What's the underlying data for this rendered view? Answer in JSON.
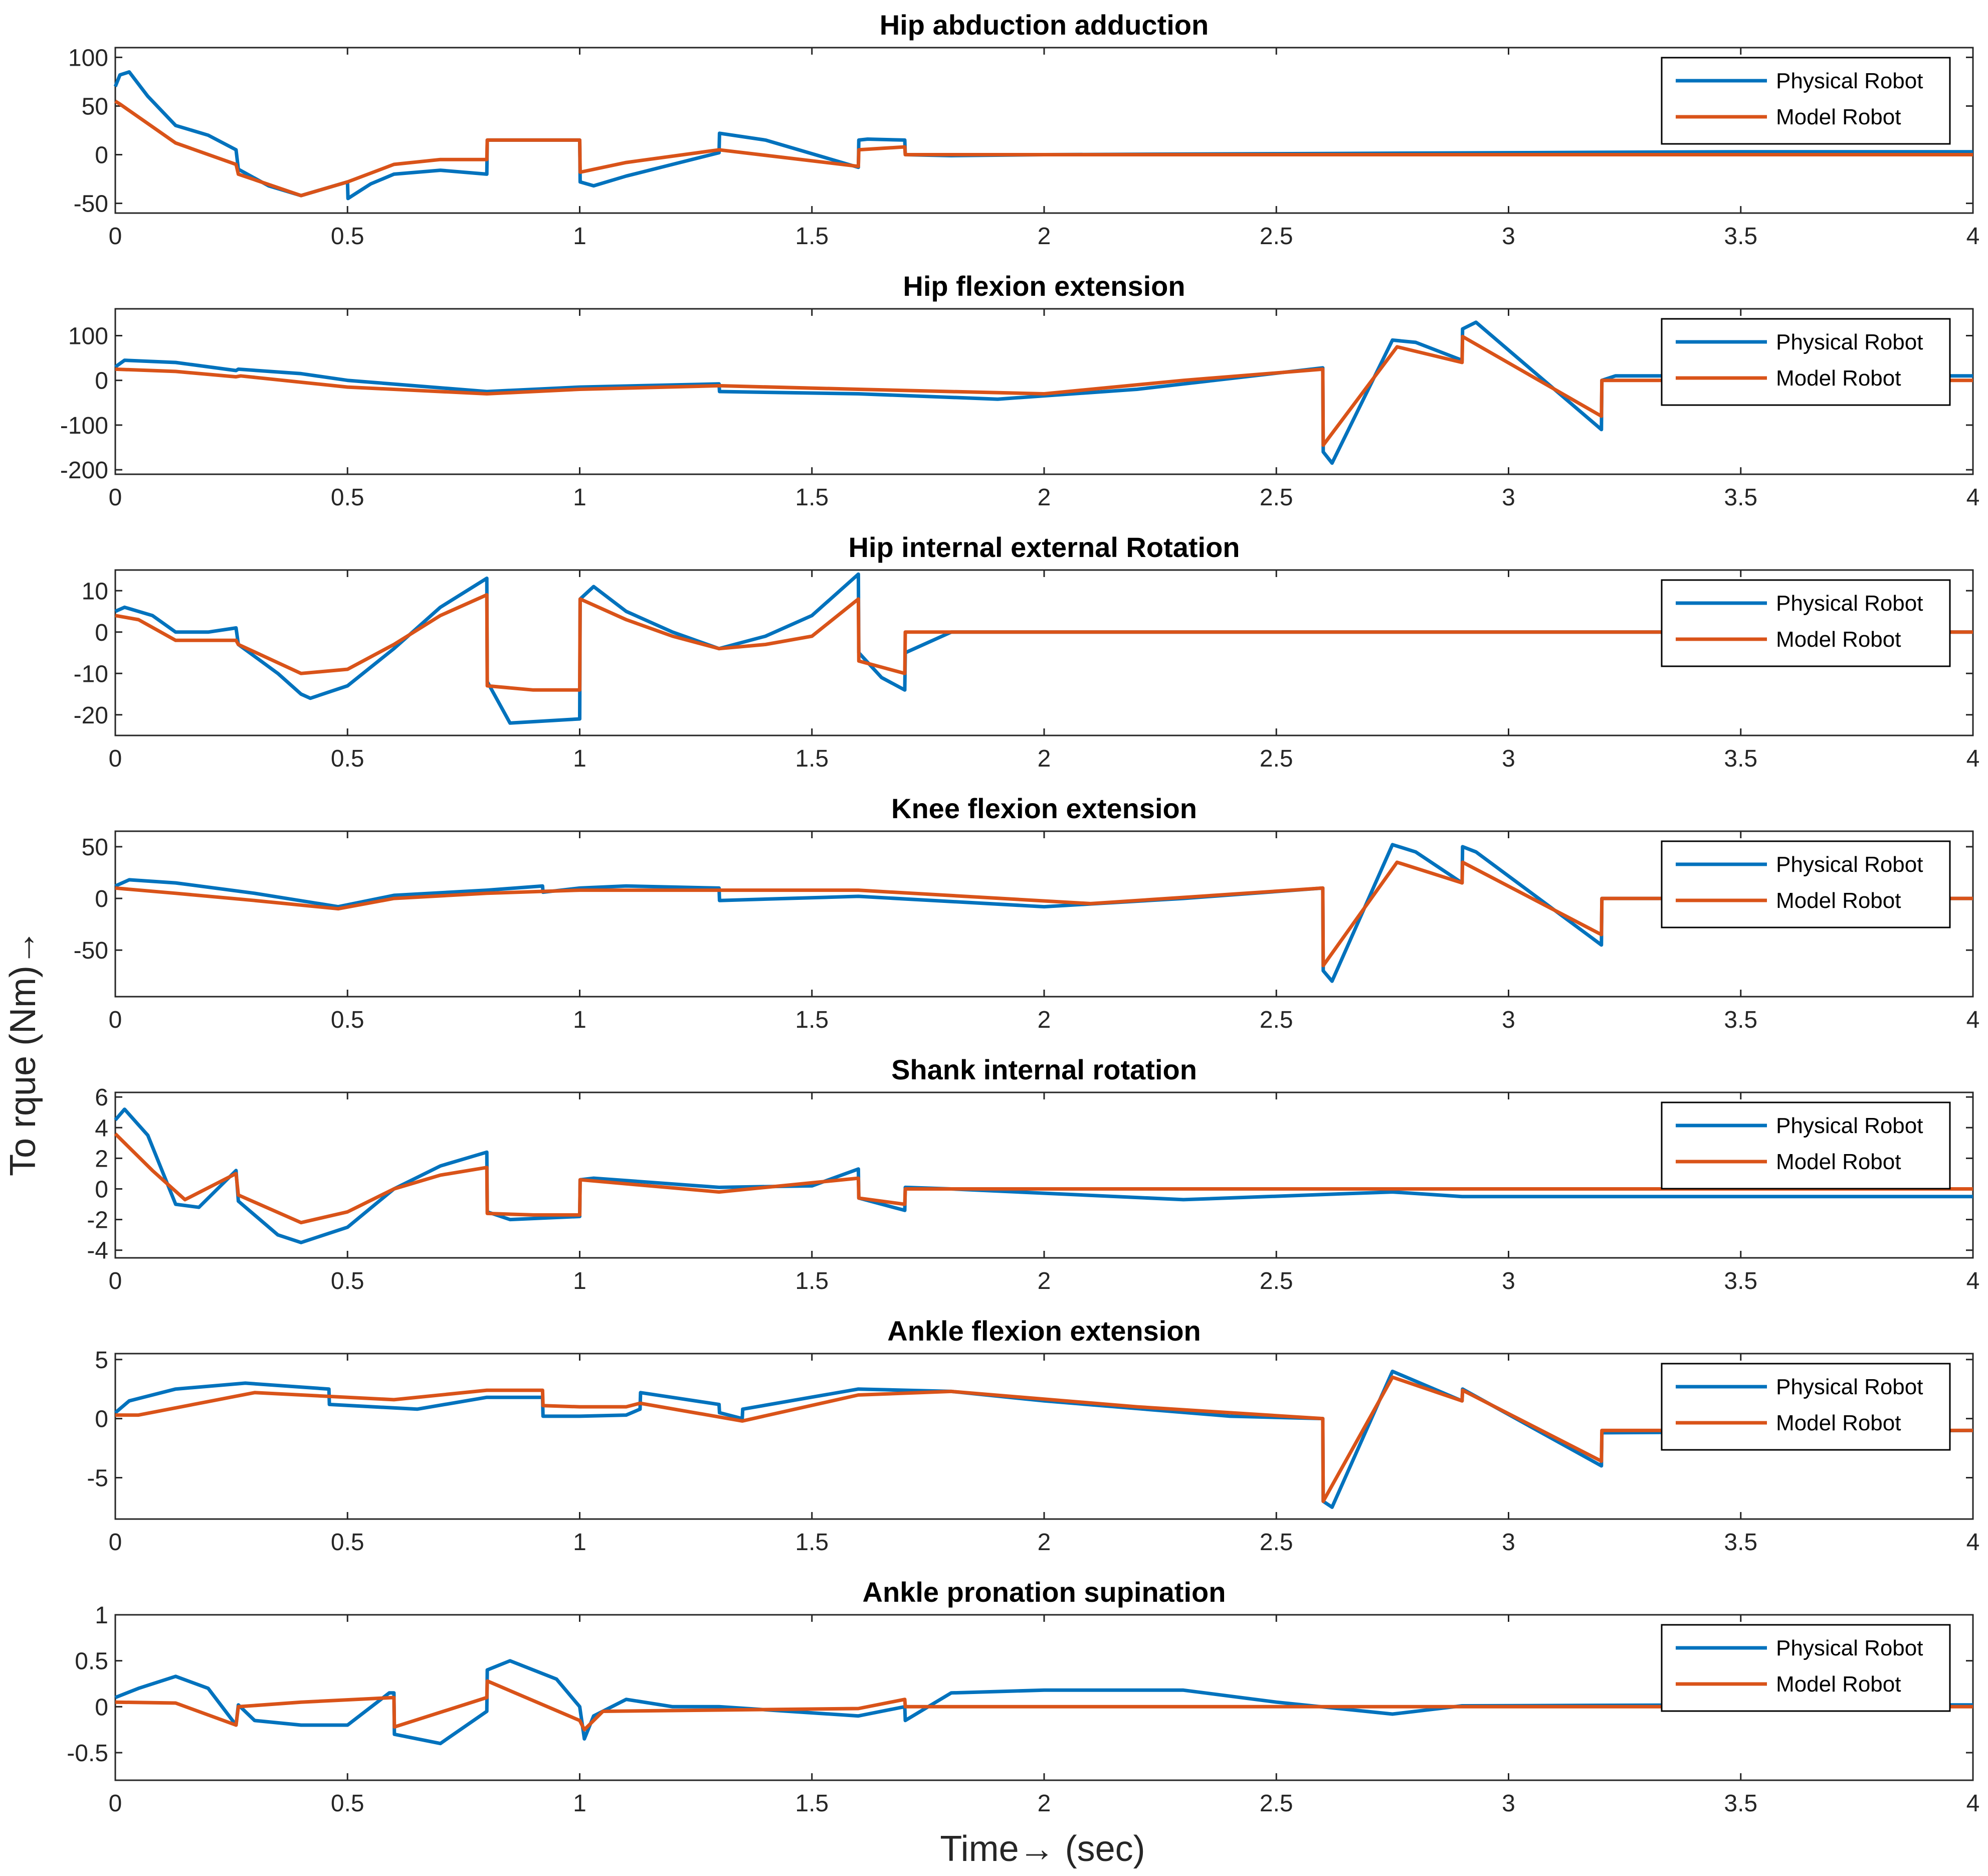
{
  "figure": {
    "ylabel": "To rque (Nm)→",
    "xlabel": "Time→ (sec)"
  },
  "colors": {
    "physical": "#0072BD",
    "model": "#D95319",
    "axis": "#262626"
  },
  "legend": {
    "entries": [
      "Physical Robot",
      "Model Robot"
    ],
    "placement": "top-right"
  },
  "chart_data": [
    {
      "type": "line",
      "title": "Hip abduction adduction",
      "xlim": [
        0,
        4
      ],
      "ylim": [
        -60,
        110
      ],
      "xticks": [
        0,
        0.5,
        1,
        1.5,
        2,
        2.5,
        3,
        3.5,
        4
      ],
      "xtick_labels": [
        "0",
        "0.5",
        "1",
        "1.5",
        "2",
        "2.5",
        "3",
        "3.5",
        "4"
      ],
      "yticks": [
        -50,
        0,
        50,
        100
      ],
      "ytick_labels": [
        "-50",
        "0",
        "50",
        "100"
      ],
      "series": [
        {
          "name": "Physical Robot",
          "x": [
            0,
            0.01,
            0.03,
            0.07,
            0.13,
            0.2,
            0.26,
            0.265,
            0.33,
            0.4,
            0.45,
            0.5,
            0.501,
            0.55,
            0.6,
            0.7,
            0.8,
            0.801,
            1.0,
            1.001,
            1.03,
            1.1,
            1.2,
            1.3,
            1.301,
            1.4,
            1.6,
            1.601,
            1.62,
            1.7,
            1.701,
            1.8,
            2,
            2.5,
            3,
            3.5,
            4
          ],
          "y": [
            70,
            82,
            85,
            60,
            30,
            20,
            5,
            -15,
            -32,
            -42,
            -35,
            -28,
            -45,
            -30,
            -20,
            -16,
            -20,
            15,
            15,
            -28,
            -32,
            -22,
            -10,
            2,
            22,
            15,
            -13,
            15,
            16,
            15,
            0,
            -1,
            0,
            1,
            2,
            3,
            3
          ]
        },
        {
          "name": "Model Robot",
          "x": [
            0,
            0.01,
            0.13,
            0.26,
            0.265,
            0.4,
            0.5,
            0.6,
            0.7,
            0.8,
            0.801,
            1.0,
            1.001,
            1.1,
            1.3,
            1.6,
            1.601,
            1.7,
            1.701,
            4
          ],
          "y": [
            55,
            52,
            12,
            -10,
            -20,
            -42,
            -28,
            -10,
            -5,
            -5,
            15,
            15,
            -18,
            -8,
            5,
            -12,
            5,
            8,
            0,
            0
          ]
        }
      ]
    },
    {
      "type": "line",
      "title": "Hip flexion extension",
      "xlim": [
        0,
        4
      ],
      "ylim": [
        -210,
        160
      ],
      "xticks": [
        0,
        0.5,
        1,
        1.5,
        2,
        2.5,
        3,
        3.5,
        4
      ],
      "xtick_labels": [
        "0",
        "0.5",
        "1",
        "1.5",
        "2",
        "2.5",
        "3",
        "3.5",
        "4"
      ],
      "yticks": [
        -200,
        -100,
        0,
        100
      ],
      "ytick_labels": [
        "-200",
        "-100",
        "0",
        "100"
      ],
      "series": [
        {
          "name": "Physical Robot",
          "x": [
            0,
            0.02,
            0.13,
            0.26,
            0.265,
            0.4,
            0.5,
            0.8,
            1.0,
            1.3,
            1.301,
            1.6,
            1.9,
            2.2,
            2.6,
            2.601,
            2.62,
            2.75,
            2.8,
            2.9,
            2.901,
            2.93,
            3.2,
            3.201,
            3.23,
            4
          ],
          "y": [
            30,
            45,
            40,
            22,
            25,
            15,
            0,
            -25,
            -15,
            -8,
            -25,
            -30,
            -42,
            -20,
            28,
            -160,
            -185,
            90,
            85,
            45,
            115,
            130,
            -110,
            0,
            10,
            10
          ]
        },
        {
          "name": "Model Robot",
          "x": [
            0,
            0.13,
            0.26,
            0.27,
            0.5,
            0.8,
            1.0,
            1.3,
            1.6,
            2.0,
            2.3,
            2.6,
            2.601,
            2.76,
            2.9,
            2.901,
            3.2,
            3.201,
            4
          ],
          "y": [
            25,
            20,
            8,
            10,
            -15,
            -30,
            -20,
            -12,
            -20,
            -30,
            0,
            25,
            -145,
            75,
            40,
            98,
            -80,
            0,
            0
          ]
        }
      ]
    },
    {
      "type": "line",
      "title": "Hip internal external Rotation",
      "xlim": [
        0,
        4
      ],
      "ylim": [
        -25,
        15
      ],
      "xticks": [
        0,
        0.5,
        1,
        1.5,
        2,
        2.5,
        3,
        3.5,
        4
      ],
      "xtick_labels": [
        "0",
        "0.5",
        "1",
        "1.5",
        "2",
        "2.5",
        "3",
        "3.5",
        "4"
      ],
      "yticks": [
        -20,
        -10,
        0,
        10
      ],
      "ytick_labels": [
        "-20",
        "-10",
        "0",
        "10"
      ],
      "series": [
        {
          "name": "Physical Robot",
          "x": [
            0,
            0.02,
            0.08,
            0.13,
            0.2,
            0.26,
            0.265,
            0.35,
            0.4,
            0.42,
            0.5,
            0.6,
            0.7,
            0.8,
            0.801,
            0.85,
            1.0,
            1.001,
            1.03,
            1.1,
            1.2,
            1.3,
            1.4,
            1.5,
            1.6,
            1.601,
            1.65,
            1.7,
            1.701,
            1.8,
            2,
            2.5,
            4
          ],
          "y": [
            5,
            6,
            4,
            0,
            0,
            1,
            -3,
            -10,
            -15,
            -16,
            -13,
            -4,
            6,
            13,
            -12,
            -22,
            -21,
            8,
            11,
            5,
            0,
            -4,
            -1,
            4,
            14,
            -5,
            -11,
            -14,
            -5,
            0,
            0,
            0,
            0
          ]
        },
        {
          "name": "Model Robot",
          "x": [
            0,
            0.05,
            0.13,
            0.26,
            0.265,
            0.4,
            0.5,
            0.6,
            0.7,
            0.8,
            0.801,
            0.9,
            1.0,
            1.001,
            1.1,
            1.2,
            1.3,
            1.4,
            1.5,
            1.6,
            1.601,
            1.7,
            1.701,
            4
          ],
          "y": [
            4,
            3,
            -2,
            -2,
            -3,
            -10,
            -9,
            -3,
            4,
            9,
            -13,
            -14,
            -14,
            8,
            3,
            -1,
            -4,
            -3,
            -1,
            8,
            -7,
            -10,
            0,
            0
          ]
        }
      ]
    },
    {
      "type": "line",
      "title": "Knee flexion extension",
      "xlim": [
        0,
        4
      ],
      "ylim": [
        -95,
        65
      ],
      "xticks": [
        0,
        0.5,
        1,
        1.5,
        2,
        2.5,
        3,
        3.5,
        4
      ],
      "xtick_labels": [
        "0",
        "0.5",
        "1",
        "1.5",
        "2",
        "2.5",
        "3",
        "3.5",
        "4"
      ],
      "yticks": [
        -50,
        0,
        50
      ],
      "ytick_labels": [
        "-50",
        "0",
        "50"
      ],
      "series": [
        {
          "name": "Physical Robot",
          "x": [
            0,
            0.03,
            0.13,
            0.3,
            0.48,
            0.6,
            0.8,
            0.92,
            0.921,
            1.0,
            1.1,
            1.3,
            1.301,
            1.6,
            2.0,
            2.3,
            2.6,
            2.601,
            2.62,
            2.75,
            2.8,
            2.9,
            2.901,
            2.93,
            3.2,
            3.201,
            4
          ],
          "y": [
            12,
            18,
            15,
            5,
            -8,
            3,
            8,
            12,
            6,
            10,
            12,
            10,
            -2,
            2,
            -8,
            0,
            10,
            -70,
            -80,
            52,
            45,
            15,
            50,
            45,
            -45,
            0,
            0
          ]
        },
        {
          "name": "Model Robot",
          "x": [
            0,
            0.13,
            0.3,
            0.48,
            0.6,
            0.8,
            1.0,
            1.3,
            1.6,
            2.1,
            2.6,
            2.601,
            2.76,
            2.9,
            2.901,
            3.2,
            3.201,
            4
          ],
          "y": [
            10,
            5,
            -2,
            -10,
            0,
            5,
            8,
            8,
            8,
            -5,
            10,
            -65,
            35,
            15,
            35,
            -35,
            0,
            0
          ]
        }
      ]
    },
    {
      "type": "line",
      "title": "Shank internal rotation",
      "xlim": [
        0,
        4
      ],
      "ylim": [
        -4.5,
        6.3
      ],
      "xticks": [
        0,
        0.5,
        1,
        1.5,
        2,
        2.5,
        3,
        3.5,
        4
      ],
      "xtick_labels": [
        "0",
        "0.5",
        "1",
        "1.5",
        "2",
        "2.5",
        "3",
        "3.5",
        "4"
      ],
      "yticks": [
        -4,
        -2,
        0,
        2,
        4,
        6
      ],
      "ytick_labels": [
        "-4",
        "-2",
        "0",
        "2",
        "4",
        "6"
      ],
      "series": [
        {
          "name": "Physical Robot",
          "x": [
            0,
            0.02,
            0.07,
            0.13,
            0.18,
            0.26,
            0.265,
            0.35,
            0.4,
            0.5,
            0.6,
            0.7,
            0.8,
            0.801,
            0.85,
            1.0,
            1.001,
            1.03,
            1.3,
            1.5,
            1.6,
            1.601,
            1.7,
            1.701,
            1.8,
            2.3,
            2.75,
            2.9,
            3.5,
            4
          ],
          "y": [
            4.5,
            5.2,
            3.5,
            -1,
            -1.2,
            1.2,
            -0.8,
            -3,
            -3.5,
            -2.5,
            0,
            1.5,
            2.4,
            -1.5,
            -2,
            -1.8,
            0.6,
            0.7,
            0.1,
            0.2,
            1.3,
            -0.6,
            -1.4,
            0.1,
            0,
            -0.7,
            -0.2,
            -0.5,
            -0.5,
            -0.5
          ]
        },
        {
          "name": "Model Robot",
          "x": [
            0,
            0.08,
            0.15,
            0.26,
            0.265,
            0.4,
            0.5,
            0.6,
            0.7,
            0.8,
            0.801,
            0.9,
            1.0,
            1.001,
            1.3,
            1.6,
            1.601,
            1.7,
            1.701,
            4
          ],
          "y": [
            3.6,
            1.2,
            -0.7,
            1,
            -0.4,
            -2.2,
            -1.5,
            0,
            0.9,
            1.4,
            -1.6,
            -1.7,
            -1.7,
            0.6,
            -0.2,
            0.7,
            -0.6,
            -1,
            0,
            0
          ]
        }
      ]
    },
    {
      "type": "line",
      "title": "Ankle flexion extension",
      "xlim": [
        0,
        4
      ],
      "ylim": [
        -8.5,
        5.5
      ],
      "xticks": [
        0,
        0.5,
        1,
        1.5,
        2,
        2.5,
        3,
        3.5,
        4
      ],
      "xtick_labels": [
        "0",
        "0.5",
        "1",
        "1.5",
        "2",
        "2.5",
        "3",
        "3.5",
        "4"
      ],
      "yticks": [
        -5,
        0,
        5
      ],
      "ytick_labels": [
        "-5",
        "0",
        "5"
      ],
      "series": [
        {
          "name": "Physical Robot",
          "x": [
            0,
            0.03,
            0.13,
            0.28,
            0.46,
            0.461,
            0.65,
            0.8,
            0.92,
            0.921,
            1.0,
            1.1,
            1.13,
            1.131,
            1.3,
            1.301,
            1.35,
            1.351,
            1.6,
            1.8,
            2.0,
            2.4,
            2.6,
            2.601,
            2.62,
            2.75,
            2.9,
            2.901,
            3.2,
            3.201,
            4
          ],
          "y": [
            0.5,
            1.5,
            2.5,
            3,
            2.5,
            1.2,
            0.8,
            1.8,
            1.8,
            0.2,
            0.2,
            0.3,
            0.8,
            2.2,
            1.2,
            0.5,
            0,
            0.8,
            2.5,
            2.3,
            1.5,
            0.2,
            0,
            -7,
            -7.5,
            4,
            1.5,
            2.5,
            -4,
            -1.2,
            -1
          ]
        },
        {
          "name": "Model Robot",
          "x": [
            0,
            0.05,
            0.3,
            0.6,
            0.8,
            0.92,
            0.921,
            1.0,
            1.1,
            1.13,
            1.35,
            1.6,
            1.8,
            2.2,
            2.6,
            2.601,
            2.75,
            2.9,
            2.901,
            3.2,
            3.201,
            4
          ],
          "y": [
            0.3,
            0.3,
            2.2,
            1.6,
            2.4,
            2.4,
            1.1,
            1,
            1,
            1.3,
            -0.2,
            2,
            2.3,
            1,
            0,
            -7,
            3.5,
            1.5,
            2.4,
            -3.6,
            -1,
            -1
          ]
        }
      ]
    },
    {
      "type": "line",
      "title": "Ankle pronation supination",
      "xlim": [
        0,
        4
      ],
      "ylim": [
        -0.8,
        1.0
      ],
      "xticks": [
        0,
        0.5,
        1,
        1.5,
        2,
        2.5,
        3,
        3.5,
        4
      ],
      "xtick_labels": [
        "0",
        "0.5",
        "1",
        "1.5",
        "2",
        "2.5",
        "3",
        "3.5",
        "4"
      ],
      "yticks": [
        -0.5,
        0,
        0.5,
        1
      ],
      "ytick_labels": [
        "-0.5",
        "0",
        "0.5",
        "1"
      ],
      "series": [
        {
          "name": "Physical Robot",
          "x": [
            0,
            0.05,
            0.13,
            0.2,
            0.26,
            0.265,
            0.3,
            0.4,
            0.5,
            0.59,
            0.6,
            0.601,
            0.7,
            0.8,
            0.801,
            0.85,
            0.95,
            1.0,
            1.01,
            1.03,
            1.1,
            1.2,
            1.3,
            1.6,
            1.7,
            1.701,
            1.8,
            2.0,
            2.3,
            2.5,
            2.75,
            2.9,
            3.5,
            4
          ],
          "y": [
            0.1,
            0.2,
            0.33,
            0.2,
            -0.2,
            0.02,
            -0.15,
            -0.2,
            -0.2,
            0.15,
            0.15,
            -0.3,
            -0.4,
            -0.05,
            0.4,
            0.5,
            0.3,
            0,
            -0.35,
            -0.1,
            0.08,
            0,
            0,
            -0.1,
            0,
            -0.15,
            0.15,
            0.18,
            0.18,
            0.05,
            -0.08,
            0.01,
            0.02,
            0.02
          ]
        },
        {
          "name": "Model Robot",
          "x": [
            0,
            0.13,
            0.26,
            0.265,
            0.4,
            0.6,
            0.601,
            0.8,
            0.801,
            1.0,
            1.01,
            1.05,
            1.6,
            1.7,
            1.701,
            4
          ],
          "y": [
            0.05,
            0.04,
            -0.2,
            0,
            0.05,
            0.1,
            -0.22,
            0.1,
            0.28,
            -0.15,
            -0.25,
            -0.05,
            -0.02,
            0.08,
            0,
            0
          ]
        }
      ]
    }
  ]
}
